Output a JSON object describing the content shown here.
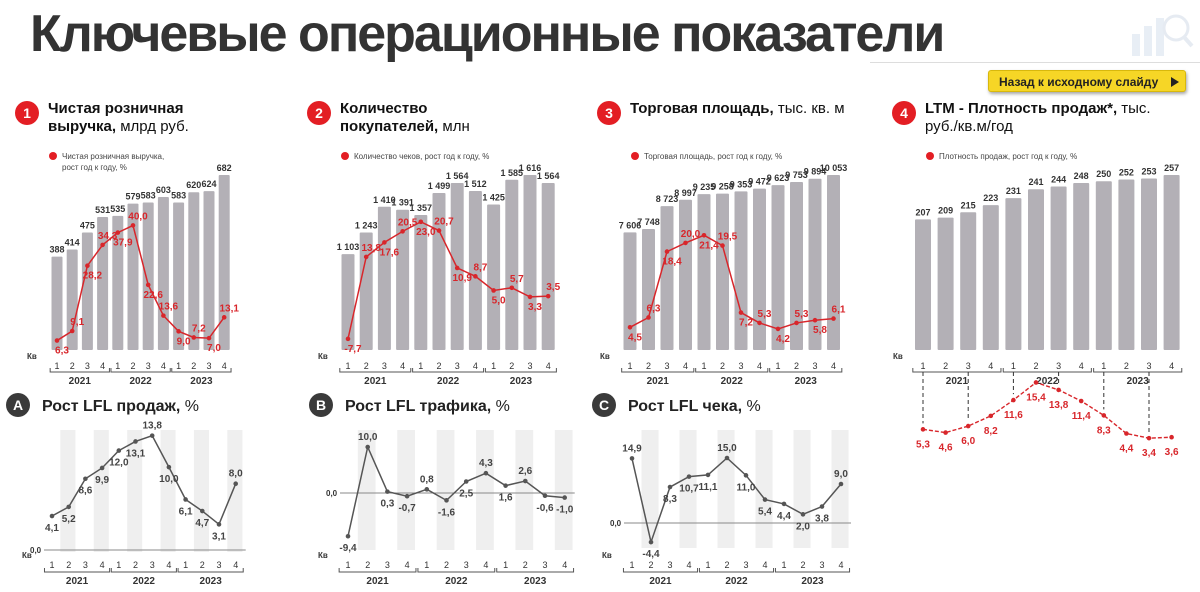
{
  "page": {
    "title": "Ключевые операционные показатели",
    "back_button": "Назад к исходному слайду"
  },
  "colors": {
    "bar": "#b3b0b6",
    "accent": "#e31e24",
    "line_red": "#d8262b",
    "line_gray": "#555555",
    "band": "#efefef",
    "text": "#333333"
  },
  "chart_data": [
    {
      "id": "1",
      "type": "bar+line",
      "badge": "1",
      "title_bold": "Чистая розничная выручка,",
      "title_regular": "млрд руб.",
      "legend": [
        "Чистая розничная выручка,",
        "рост год к году, %"
      ],
      "xlabel": "Кв",
      "quarters": [
        "1",
        "2",
        "3",
        "4",
        "1",
        "2",
        "3",
        "4",
        "1",
        "2",
        "3",
        "4"
      ],
      "years": [
        "2021",
        "2022",
        "2023"
      ],
      "bar_values": [
        388,
        414,
        475,
        531,
        535,
        579,
        583,
        603,
        583,
        620,
        624,
        682
      ],
      "bar_labels": [
        "388",
        "414",
        "475",
        "531",
        "535",
        "579",
        "583",
        "603",
        "583",
        "620",
        "624",
        "682"
      ],
      "line_values": [
        6.3,
        9.1,
        28.2,
        34.3,
        37.9,
        40.0,
        22.6,
        13.6,
        9.0,
        7.2,
        7.0,
        13.1
      ],
      "line_labels": [
        "6,3",
        "9,1",
        "28,2",
        "34,3",
        "37,9",
        "40,0",
        "22,6",
        "13,6",
        "9,0",
        "7,2",
        "7,0",
        "13,1"
      ]
    },
    {
      "id": "2",
      "type": "bar+line",
      "badge": "2",
      "title_bold": "Количество покупателей,",
      "title_regular": "млн",
      "legend": [
        "Количество чеков, рост год к году, %"
      ],
      "xlabel": "Кв",
      "quarters": [
        "1",
        "2",
        "3",
        "4",
        "1",
        "2",
        "3",
        "4",
        "1",
        "2",
        "3",
        "4"
      ],
      "years": [
        "2021",
        "2022",
        "2023"
      ],
      "bar_values": [
        1103,
        1243,
        1410,
        1391,
        1357,
        1499,
        1564,
        1512,
        1425,
        1585,
        1616,
        1564
      ],
      "bar_labels": [
        "1 103",
        "1 243",
        "1 410",
        "1 391",
        "1 357",
        "1 499",
        "1 564",
        "1 512",
        "1 425",
        "1 585",
        "1 616",
        "1 564"
      ],
      "line_values": [
        -7.7,
        13.8,
        17.6,
        20.5,
        23.0,
        20.7,
        10.9,
        8.7,
        5.0,
        5.7,
        3.3,
        3.5
      ],
      "line_labels": [
        "-7,7",
        "13,8",
        "17,6",
        "20,5",
        "23,0",
        "20,7",
        "10,9",
        "8,7",
        "5,0",
        "5,7",
        "3,3",
        "3,5"
      ]
    },
    {
      "id": "3",
      "type": "bar+line",
      "badge": "3",
      "title_bold": "Торговая площадь,",
      "title_regular": "тыс. кв. м",
      "legend": [
        "Торговая площадь, рост год к году, %"
      ],
      "xlabel": "Кв",
      "quarters": [
        "1",
        "2",
        "3",
        "4",
        "1",
        "2",
        "3",
        "4",
        "1",
        "2",
        "3",
        "4"
      ],
      "years": [
        "2021",
        "2022",
        "2023"
      ],
      "bar_values": [
        7606,
        7748,
        8723,
        8997,
        9235,
        9258,
        9353,
        9472,
        9623,
        9753,
        9894,
        10053
      ],
      "bar_labels": [
        "7 606",
        "7 748",
        "8 723",
        "8 997",
        "9 235",
        "9 258",
        "9 353",
        "9 472",
        "9 623",
        "9 753",
        "9 894",
        "10 053"
      ],
      "line_values": [
        4.5,
        6.3,
        18.4,
        20.0,
        21.4,
        19.5,
        7.2,
        5.3,
        4.2,
        5.3,
        5.8,
        6.1
      ],
      "line_labels": [
        "4,5",
        "6,3",
        "18,4",
        "20,0",
        "21,4",
        "19,5",
        "7,2",
        "5,3",
        "4,2",
        "5,3",
        "5,8",
        "6,1"
      ]
    },
    {
      "id": "4",
      "type": "bar+line",
      "badge": "4",
      "title_bold": "LTM - Плотность продаж*,",
      "title_regular": "тыс. руб./кв.м/год",
      "legend": [
        "Плотность продаж, рост год к году, %"
      ],
      "xlabel": "Кв",
      "quarters": [
        "1",
        "2",
        "3",
        "4",
        "1",
        "2",
        "3",
        "4",
        "1",
        "2",
        "3",
        "4"
      ],
      "years": [
        "2021",
        "2022",
        "2023"
      ],
      "bar_values": [
        207,
        209,
        215,
        223,
        231,
        241,
        244,
        248,
        250,
        252,
        253,
        257
      ],
      "bar_labels": [
        "207",
        "209",
        "215",
        "223",
        "231",
        "241",
        "244",
        "248",
        "250",
        "252",
        "253",
        "257"
      ],
      "line_values": [
        5.3,
        4.6,
        6.0,
        8.2,
        11.6,
        15.4,
        13.8,
        11.4,
        8.3,
        4.4,
        3.4,
        3.6
      ],
      "line_labels": [
        "5,3",
        "4,6",
        "6,0",
        "8,2",
        "11,6",
        "15,4",
        "13,8",
        "11,4",
        "8,3",
        "4,4",
        "3,4",
        "3,6"
      ]
    },
    {
      "id": "A",
      "type": "line",
      "badge": "A",
      "title_bold": "Рост LFL продаж,",
      "title_regular": "%",
      "xlabel": "Кв",
      "zero_label": "0,0",
      "quarters": [
        "1",
        "2",
        "3",
        "4",
        "1",
        "2",
        "3",
        "4",
        "1",
        "2",
        "3",
        "4"
      ],
      "years": [
        "2021",
        "2022",
        "2023"
      ],
      "values": [
        4.1,
        5.2,
        8.6,
        9.9,
        12.0,
        13.1,
        13.8,
        10.0,
        6.1,
        4.7,
        3.1,
        8.0
      ],
      "labels": [
        "4,1",
        "5,2",
        "8,6",
        "9,9",
        "12,0",
        "13,1",
        "13,8",
        "10,0",
        "6,1",
        "4,7",
        "3,1",
        "8,0"
      ]
    },
    {
      "id": "B",
      "type": "line",
      "badge": "B",
      "title_bold": "Рост LFL трафика,",
      "title_regular": "%",
      "xlabel": "Кв",
      "zero_label": "0,0",
      "quarters": [
        "1",
        "2",
        "3",
        "4",
        "1",
        "2",
        "3",
        "4",
        "1",
        "2",
        "3",
        "4"
      ],
      "years": [
        "2021",
        "2022",
        "2023"
      ],
      "values": [
        -9.4,
        10.0,
        0.3,
        -0.7,
        0.8,
        -1.6,
        2.5,
        4.3,
        1.6,
        2.6,
        -0.6,
        -1.0
      ],
      "labels": [
        "-9,4",
        "10,0",
        "0,3",
        "-0,7",
        "0,8",
        "-1,6",
        "2,5",
        "4,3",
        "1,6",
        "2,6",
        "-0,6",
        "-1,0"
      ]
    },
    {
      "id": "C",
      "type": "line",
      "badge": "C",
      "title_bold": "Рост LFL чека,",
      "title_regular": "%",
      "xlabel": "Кв",
      "zero_label": "0,0",
      "quarters": [
        "1",
        "2",
        "3",
        "4",
        "1",
        "2",
        "3",
        "4",
        "1",
        "2",
        "3",
        "4"
      ],
      "years": [
        "2021",
        "2022",
        "2023"
      ],
      "values": [
        14.9,
        -4.4,
        8.3,
        10.7,
        11.1,
        15.0,
        11.0,
        5.4,
        4.4,
        2.0,
        3.8,
        9.0
      ],
      "labels": [
        "14,9",
        "-4,4",
        "8,3",
        "10,7",
        "11,1",
        "15,0",
        "11,0",
        "5,4",
        "4,4",
        "2,0",
        "3,8",
        "9,0"
      ]
    }
  ]
}
